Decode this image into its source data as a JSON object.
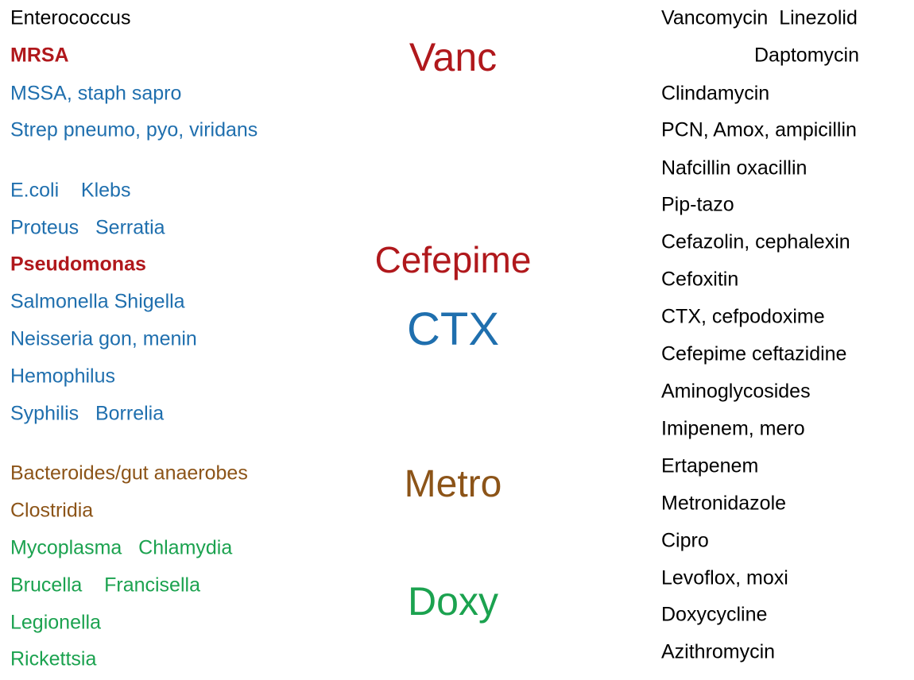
{
  "left": [
    {
      "text": "Enterococcus",
      "color": "#000000"
    },
    {
      "text": "MRSA",
      "color": "#b0181c",
      "bold": true
    },
    {
      "text": "MSSA, staph sapro",
      "color": "#1f6fae"
    },
    {
      "text": "Strep pneumo, pyo, viridans",
      "color": "#1f6fae"
    },
    {
      "text": "E.coli    Klebs",
      "color": "#1f6fae"
    },
    {
      "text": "Proteus   Serratia",
      "color": "#1f6fae"
    },
    {
      "text": "Pseudomonas",
      "color": "#b0181c",
      "bold": true
    },
    {
      "text": "Salmonella Shigella",
      "color": "#1f6fae"
    },
    {
      "text": "Neisseria gon, menin",
      "color": "#1f6fae"
    },
    {
      "text": "Hemophilus",
      "color": "#1f6fae"
    },
    {
      "text": "Syphilis   Borrelia",
      "color": "#1f6fae"
    },
    {
      "text": "Bacteroides/gut anaerobes",
      "color": "#8c5418"
    },
    {
      "text": "Clostridia",
      "color": "#8c5418"
    },
    {
      "text": "Mycoplasma   Chlamydia",
      "color": "#1ba24f"
    },
    {
      "text": "Brucella    Francisella",
      "color": "#1ba24f"
    },
    {
      "text": "Legionella",
      "color": "#1ba24f"
    },
    {
      "text": "Rickettsia",
      "color": "#1ba24f"
    }
  ],
  "center": [
    {
      "text": "Vanc",
      "color": "#b0181c"
    },
    {
      "text": "Cefepime",
      "color": "#b0181c"
    },
    {
      "text": "CTX",
      "color": "#1f6fae"
    },
    {
      "text": "Metro",
      "color": "#8c5418"
    },
    {
      "text": "Doxy",
      "color": "#1ba24f"
    }
  ],
  "right": [
    "Vancomycin  Linezolid",
    "Daptomycin",
    "Clindamycin",
    "PCN, Amox, ampicillin",
    "Nafcillin oxacillin",
    "Pip-tazo",
    "Cefazolin, cephalexin",
    "Cefoxitin",
    "CTX, cefpodoxime",
    "Cefepime ceftazidine",
    "Aminoglycosides",
    "Imipenem, mero",
    "Ertapenem",
    "Metronidazole",
    "Cipro",
    "Levoflox, moxi",
    "Doxycycline",
    "Azithromycin"
  ]
}
